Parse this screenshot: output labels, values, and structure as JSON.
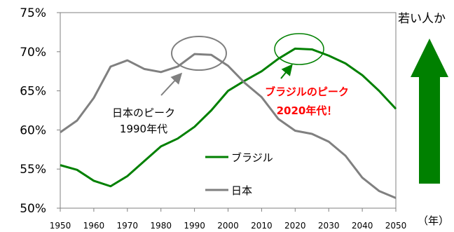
{
  "chart_data": {
    "type": "line",
    "x": [
      1950,
      1955,
      1960,
      1965,
      1970,
      1975,
      1980,
      1985,
      1990,
      1995,
      2000,
      2005,
      2010,
      2015,
      2020,
      2025,
      2030,
      2035,
      2040,
      2045,
      2050
    ],
    "x_ticks": [
      "1950",
      "1960",
      "1970",
      "1980",
      "1990",
      "2000",
      "2010",
      "2020",
      "2030",
      "2040",
      "2050"
    ],
    "y_ticks": [
      "50%",
      "55%",
      "60%",
      "65%",
      "70%",
      "75%"
    ],
    "ylim": [
      50,
      75
    ],
    "xlim": [
      1950,
      2050
    ],
    "xlabel": "（年）",
    "series": [
      {
        "name": "ブラジル",
        "color": "#008000",
        "values": [
          55.5,
          54.9,
          53.5,
          52.8,
          54.1,
          56.0,
          57.9,
          58.9,
          60.4,
          62.5,
          65.0,
          66.3,
          67.5,
          69.1,
          70.4,
          70.3,
          69.5,
          68.5,
          67.0,
          65.0,
          62.7
        ]
      },
      {
        "name": "日本",
        "color": "#808080",
        "values": [
          59.7,
          61.2,
          64.1,
          68.1,
          68.9,
          67.8,
          67.4,
          68.1,
          69.7,
          69.6,
          68.2,
          66.0,
          64.2,
          61.4,
          59.9,
          59.5,
          58.5,
          56.7,
          53.9,
          52.2,
          51.3
        ]
      }
    ],
    "annotations": {
      "japan_peak_line1": "日本のピーク",
      "japan_peak_line2": "1990年代",
      "brazil_peak_line1": "ブラジルのピーク",
      "brazil_peak_line2": "2020年代！",
      "right_text": "若い人か"
    },
    "grid": false,
    "legend": "inside-lower-center"
  }
}
